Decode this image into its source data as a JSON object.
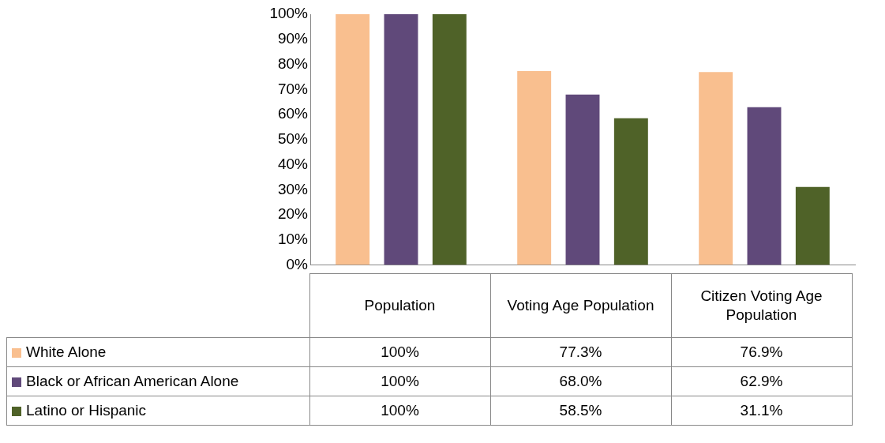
{
  "chart_data": {
    "type": "bar",
    "categories": [
      "Population",
      "Voting Age Population",
      "Citizen Voting Age Population"
    ],
    "series": [
      {
        "name": "White Alone",
        "color": "#f9bf8f",
        "values": [
          100,
          77.3,
          76.9
        ],
        "value_labels": [
          "100%",
          "77.3%",
          "76.9%"
        ]
      },
      {
        "name": "Black or African American Alone",
        "color": "#60497a",
        "values": [
          100,
          68.0,
          62.9
        ],
        "value_labels": [
          "100%",
          "68.0%",
          "62.9%"
        ]
      },
      {
        "name": "Latino or Hispanic",
        "color": "#4f6228",
        "values": [
          100,
          58.5,
          31.1
        ],
        "value_labels": [
          "100%",
          "58.5%",
          "31.1%"
        ]
      }
    ],
    "ylim": [
      0,
      100
    ],
    "yticks": [
      {
        "value": 0,
        "label": "0%"
      },
      {
        "value": 10,
        "label": "10%"
      },
      {
        "value": 20,
        "label": "20%"
      },
      {
        "value": 30,
        "label": "30%"
      },
      {
        "value": 40,
        "label": "40%"
      },
      {
        "value": 50,
        "label": "50%"
      },
      {
        "value": 60,
        "label": "60%"
      },
      {
        "value": 70,
        "label": "70%"
      },
      {
        "value": 80,
        "label": "80%"
      },
      {
        "value": 90,
        "label": "90%"
      },
      {
        "value": 100,
        "label": "100%"
      }
    ],
    "grid": false,
    "legend": "bottom left"
  }
}
